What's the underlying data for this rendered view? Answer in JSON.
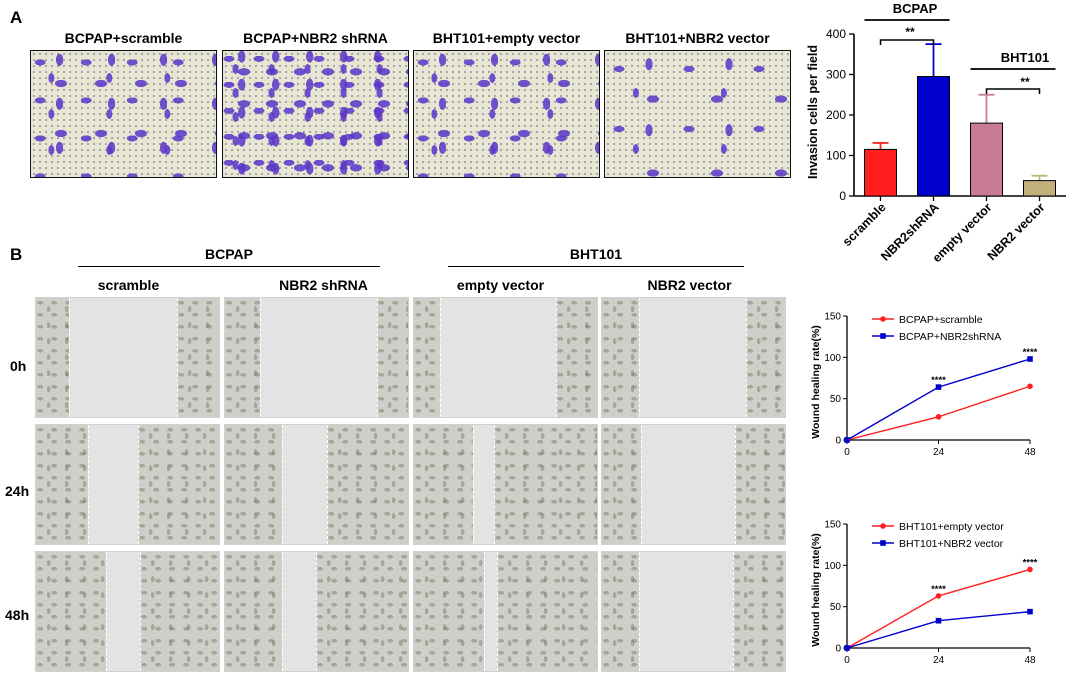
{
  "panel_a": {
    "letter": "A",
    "image_titles": [
      "BCPAP+scramble",
      "BCPAP+NBR2 shRNA",
      "BHT101+empty vector",
      "BHT101+NBR2 vector"
    ]
  },
  "panel_b": {
    "letter": "B",
    "groups": [
      "BCPAP",
      "BHT101"
    ],
    "column_titles": [
      "scramble",
      "NBR2 shRNA",
      "empty vector",
      "NBR2 vector"
    ],
    "row_labels": [
      "0h",
      "24h",
      "48h"
    ]
  },
  "colors": {
    "red": "#ff1f1f",
    "blue": "#0000cc",
    "pink": "#c87b96",
    "khaki": "#c2b07a"
  },
  "chart_data": [
    {
      "type": "bar",
      "categories": [
        "scramble",
        "NBR2shRNA",
        "empty vector",
        "NBR2 vector"
      ],
      "values": [
        115,
        295,
        180,
        38
      ],
      "errors": [
        16,
        80,
        70,
        12
      ],
      "colors": [
        "#ff1f1f",
        "#0000cc",
        "#c87b96",
        "#c2b07a"
      ],
      "ylabel": "Invasion cells per field",
      "ylim": [
        0,
        400
      ],
      "yticks": [
        "0",
        "100",
        "200",
        "300",
        "400"
      ],
      "group_labels": [
        "BCPAP",
        "BHT101"
      ],
      "significance": [
        "**",
        "**"
      ]
    },
    {
      "type": "line",
      "x": [
        0,
        24,
        48
      ],
      "xticks": [
        "0",
        "24",
        "48"
      ],
      "ylabel": "Wound healing rate(%)",
      "ylim": [
        0,
        150
      ],
      "yticks": [
        "0",
        "50",
        "100",
        "150"
      ],
      "series": [
        {
          "name": "BCPAP+scramble",
          "values": [
            0,
            28,
            65
          ],
          "color": "#ff1f1f",
          "marker": "circle"
        },
        {
          "name": "BCPAP+NBR2shRNA",
          "values": [
            0,
            64,
            98
          ],
          "color": "#0000cc",
          "marker": "square"
        }
      ],
      "annotations": [
        "****",
        "****"
      ]
    },
    {
      "type": "line",
      "x": [
        0,
        24,
        48
      ],
      "xticks": [
        "0",
        "24",
        "48"
      ],
      "ylabel": "Wound healing rate(%)",
      "ylim": [
        0,
        150
      ],
      "yticks": [
        "0",
        "50",
        "100",
        "150"
      ],
      "series": [
        {
          "name": "BHT101+empty vector",
          "values": [
            0,
            63,
            95
          ],
          "color": "#ff1f1f",
          "marker": "circle"
        },
        {
          "name": "BHT101+NBR2 vector",
          "values": [
            0,
            33,
            44
          ],
          "color": "#0000cc",
          "marker": "square"
        }
      ],
      "annotations": [
        "****",
        "****"
      ]
    }
  ]
}
